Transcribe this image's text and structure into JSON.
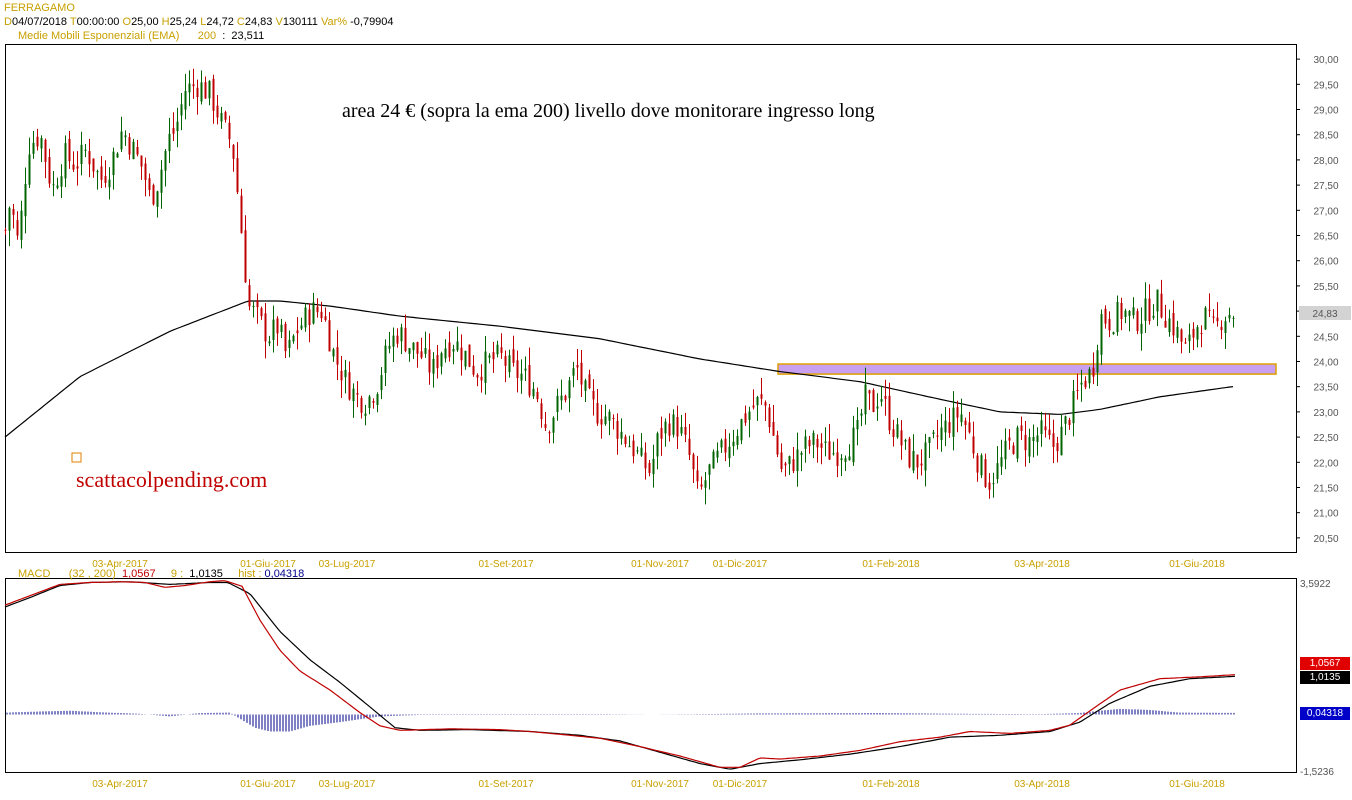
{
  "header": {
    "symbol": "FERRAGAMO",
    "labels": {
      "d": "D",
      "t": "T",
      "o": "O",
      "h": "H",
      "l": "L",
      "c": "C",
      "v": "V",
      "var": "Var%"
    },
    "date": "04/07/2018",
    "time": "00:00:00",
    "open": "25,00",
    "high": "25,24",
    "low": "24,72",
    "close": "24,83",
    "volume": "130111",
    "var_pct": "-0,79904",
    "ema_label": "Medie Mobili Esponenziali (EMA)",
    "ema_period": "200",
    "ema_value": "23,511"
  },
  "colors": {
    "up": "#006400",
    "down": "#c00000",
    "zone": "#c9a0f0",
    "zone_border": "#e0a000",
    "axis_text": "#c8a000",
    "macd_line": "#c00000",
    "signal_line": "#000000",
    "hist": "#00008b"
  },
  "annotation": {
    "note": "area 24 € (sopra la ema 200) livello dove monitorare ingresso long",
    "watermark": "scattacolpending.com"
  },
  "macd_legend": {
    "name": "MACD",
    "params": "(32 , 200)",
    "macd_value": "1,0567",
    "signal_period": "9",
    "signal_sep": ":",
    "signal_value": "1,0135",
    "hist_label": "hist",
    "hist_sep": ":",
    "hist_value": "0,04318"
  },
  "price_last": "24,83",
  "macd_axis": {
    "top": "3,5922",
    "bottom": "-1,5236"
  },
  "macd_badges": {
    "macd": "1,0567",
    "signal": "1,0135",
    "hist": "0,04318"
  },
  "chart_data": {
    "type": "candlestick",
    "x_labels": [
      "03-Apr-2017",
      "01-Giu-2017",
      "03-Lug-2017",
      "01-Set-2017",
      "01-Nov-2017",
      "01-Dic-2017",
      "01-Feb-2018",
      "03-Apr-2018",
      "01-Giu-2018"
    ],
    "y_ticks": [
      "20,50",
      "21,00",
      "21,50",
      "22,00",
      "22,50",
      "23,00",
      "23,50",
      "24,00",
      "24,50",
      "25,00",
      "25,50",
      "26,00",
      "26,50",
      "27,00",
      "27,50",
      "28,00",
      "28,50",
      "29,00",
      "29,50",
      "30,00"
    ],
    "ylim": [
      20.2,
      30.3
    ],
    "price_path": [
      [
        0,
        26.5
      ],
      [
        5,
        26.6
      ],
      [
        10,
        27.2
      ],
      [
        18,
        26.3
      ],
      [
        28,
        28.3
      ],
      [
        40,
        28.5
      ],
      [
        52,
        27.4
      ],
      [
        64,
        28.1
      ],
      [
        75,
        27.9
      ],
      [
        86,
        28.2
      ],
      [
        100,
        27.6
      ],
      [
        110,
        27.9
      ],
      [
        122,
        28.6
      ],
      [
        133,
        28.2
      ],
      [
        143,
        27.8
      ],
      [
        150,
        27.2
      ],
      [
        158,
        27.6
      ],
      [
        168,
        28.4
      ],
      [
        175,
        28.6
      ],
      [
        185,
        29.4
      ],
      [
        198,
        29.5
      ],
      [
        210,
        29.3
      ],
      [
        222,
        28.7
      ],
      [
        232,
        28.3
      ],
      [
        238,
        27.2
      ],
      [
        244,
        26.0
      ],
      [
        248,
        25.1
      ],
      [
        256,
        24.9
      ],
      [
        268,
        24.5
      ],
      [
        278,
        24.7
      ],
      [
        286,
        24.1
      ],
      [
        296,
        24.6
      ],
      [
        310,
        25.0
      ],
      [
        322,
        25.0
      ],
      [
        334,
        24.1
      ],
      [
        346,
        23.6
      ],
      [
        356,
        23.3
      ],
      [
        366,
        23.2
      ],
      [
        376,
        23.5
      ],
      [
        388,
        24.3
      ],
      [
        398,
        24.6
      ],
      [
        410,
        24.3
      ],
      [
        422,
        24.1
      ],
      [
        432,
        23.8
      ],
      [
        442,
        24.3
      ],
      [
        454,
        24.4
      ],
      [
        466,
        24.1
      ],
      [
        476,
        23.8
      ],
      [
        488,
        24.0
      ],
      [
        500,
        24.1
      ],
      [
        512,
        23.8
      ],
      [
        524,
        23.7
      ],
      [
        536,
        23.4
      ],
      [
        546,
        22.7
      ],
      [
        556,
        23.1
      ],
      [
        566,
        23.4
      ],
      [
        576,
        23.9
      ],
      [
        586,
        23.3
      ],
      [
        596,
        23.0
      ],
      [
        608,
        22.9
      ],
      [
        620,
        22.6
      ],
      [
        632,
        22.3
      ],
      [
        642,
        22.0
      ],
      [
        650,
        21.8
      ],
      [
        658,
        22.5
      ],
      [
        668,
        22.8
      ],
      [
        678,
        22.7
      ],
      [
        688,
        22.2
      ],
      [
        698,
        21.3
      ],
      [
        708,
        21.8
      ],
      [
        718,
        22.1
      ],
      [
        728,
        22.4
      ],
      [
        738,
        22.7
      ],
      [
        748,
        23.0
      ],
      [
        758,
        23.2
      ],
      [
        766,
        23.1
      ],
      [
        772,
        22.6
      ],
      [
        782,
        21.8
      ],
      [
        792,
        22.0
      ],
      [
        804,
        22.3
      ],
      [
        816,
        22.4
      ],
      [
        826,
        22.2
      ],
      [
        838,
        22.2
      ],
      [
        850,
        22.4
      ],
      [
        858,
        22.6
      ],
      [
        864,
        23.3
      ],
      [
        872,
        23.1
      ],
      [
        880,
        23.4
      ],
      [
        888,
        22.9
      ],
      [
        898,
        22.5
      ],
      [
        908,
        22.1
      ],
      [
        918,
        22.0
      ],
      [
        928,
        22.2
      ],
      [
        940,
        22.6
      ],
      [
        950,
        22.8
      ],
      [
        960,
        23.0
      ],
      [
        968,
        22.6
      ],
      [
        978,
        22.0
      ],
      [
        988,
        21.6
      ],
      [
        998,
        21.9
      ],
      [
        1008,
        22.3
      ],
      [
        1018,
        22.5
      ],
      [
        1030,
        22.4
      ],
      [
        1040,
        22.6
      ],
      [
        1052,
        22.3
      ],
      [
        1062,
        22.6
      ],
      [
        1072,
        23.1
      ],
      [
        1082,
        23.6
      ],
      [
        1092,
        23.8
      ],
      [
        1100,
        24.9
      ],
      [
        1110,
        24.8
      ],
      [
        1122,
        25.0
      ],
      [
        1134,
        24.8
      ],
      [
        1146,
        25.0
      ],
      [
        1156,
        25.2
      ],
      [
        1166,
        24.9
      ],
      [
        1176,
        24.6
      ],
      [
        1186,
        24.2
      ],
      [
        1196,
        24.7
      ],
      [
        1204,
        24.9
      ],
      [
        1214,
        24.6
      ],
      [
        1222,
        24.9
      ],
      [
        1232,
        25.0
      ],
      [
        1236,
        24.83
      ]
    ],
    "ema_path": [
      [
        5,
        22.5
      ],
      [
        80,
        23.7
      ],
      [
        170,
        24.6
      ],
      [
        248,
        25.2
      ],
      [
        280,
        25.2
      ],
      [
        330,
        25.1
      ],
      [
        400,
        24.9
      ],
      [
        500,
        24.7
      ],
      [
        600,
        24.45
      ],
      [
        700,
        24.05
      ],
      [
        780,
        23.8
      ],
      [
        860,
        23.6
      ],
      [
        940,
        23.25
      ],
      [
        1000,
        23.0
      ],
      [
        1060,
        22.95
      ],
      [
        1100,
        23.05
      ],
      [
        1160,
        23.3
      ],
      [
        1236,
        23.511
      ]
    ],
    "zone": {
      "low": 23.75,
      "high": 23.95,
      "x_start": 778,
      "x_end": 1276
    },
    "macd_ylim": [
      -1.5236,
      3.5922
    ],
    "macd_path": [
      [
        5,
        2.9
      ],
      [
        30,
        3.15
      ],
      [
        60,
        3.45
      ],
      [
        90,
        3.5
      ],
      [
        120,
        3.52
      ],
      [
        145,
        3.5
      ],
      [
        165,
        3.37
      ],
      [
        185,
        3.42
      ],
      [
        210,
        3.52
      ],
      [
        225,
        3.55
      ],
      [
        242,
        3.4
      ],
      [
        260,
        2.5
      ],
      [
        280,
        1.7
      ],
      [
        300,
        1.15
      ],
      [
        330,
        0.65
      ],
      [
        360,
        0.05
      ],
      [
        380,
        -0.3
      ],
      [
        400,
        -0.42
      ],
      [
        450,
        -0.38
      ],
      [
        500,
        -0.4
      ],
      [
        530,
        -0.45
      ],
      [
        570,
        -0.55
      ],
      [
        600,
        -0.63
      ],
      [
        640,
        -0.85
      ],
      [
        680,
        -1.1
      ],
      [
        720,
        -1.4
      ],
      [
        740,
        -1.4
      ],
      [
        760,
        -1.15
      ],
      [
        780,
        -1.18
      ],
      [
        820,
        -1.1
      ],
      [
        860,
        -0.95
      ],
      [
        900,
        -0.72
      ],
      [
        940,
        -0.6
      ],
      [
        970,
        -0.45
      ],
      [
        1010,
        -0.5
      ],
      [
        1050,
        -0.42
      ],
      [
        1070,
        -0.28
      ],
      [
        1090,
        0.1
      ],
      [
        1120,
        0.65
      ],
      [
        1160,
        0.95
      ],
      [
        1200,
        1.0
      ],
      [
        1236,
        1.0567
      ]
    ],
    "signal_path": [
      [
        5,
        2.85
      ],
      [
        30,
        3.1
      ],
      [
        60,
        3.42
      ],
      [
        90,
        3.5
      ],
      [
        130,
        3.52
      ],
      [
        170,
        3.45
      ],
      [
        210,
        3.5
      ],
      [
        228,
        3.5
      ],
      [
        250,
        3.2
      ],
      [
        280,
        2.2
      ],
      [
        310,
        1.45
      ],
      [
        340,
        0.85
      ],
      [
        370,
        0.2
      ],
      [
        395,
        -0.35
      ],
      [
        420,
        -0.42
      ],
      [
        470,
        -0.4
      ],
      [
        530,
        -0.45
      ],
      [
        580,
        -0.55
      ],
      [
        620,
        -0.7
      ],
      [
        660,
        -1.0
      ],
      [
        700,
        -1.3
      ],
      [
        730,
        -1.45
      ],
      [
        760,
        -1.3
      ],
      [
        800,
        -1.2
      ],
      [
        850,
        -1.05
      ],
      [
        900,
        -0.85
      ],
      [
        950,
        -0.6
      ],
      [
        1000,
        -0.55
      ],
      [
        1050,
        -0.45
      ],
      [
        1080,
        -0.2
      ],
      [
        1110,
        0.3
      ],
      [
        1150,
        0.75
      ],
      [
        1190,
        0.95
      ],
      [
        1236,
        1.0135
      ]
    ],
    "hist_path": [
      [
        5,
        0.05
      ],
      [
        40,
        0.08
      ],
      [
        70,
        0.1
      ],
      [
        100,
        0.06
      ],
      [
        140,
        0.02
      ],
      [
        170,
        -0.05
      ],
      [
        200,
        0.04
      ],
      [
        230,
        0.05
      ],
      [
        255,
        -0.35
      ],
      [
        270,
        -0.45
      ],
      [
        290,
        -0.45
      ],
      [
        310,
        -0.3
      ],
      [
        340,
        -0.2
      ],
      [
        380,
        -0.05
      ],
      [
        420,
        -0.01
      ],
      [
        500,
        -0.01
      ],
      [
        600,
        -0.01
      ],
      [
        700,
        0.01
      ],
      [
        760,
        0.03
      ],
      [
        880,
        0.04
      ],
      [
        960,
        0.02
      ],
      [
        1040,
        0.01
      ],
      [
        1080,
        0.04
      ],
      [
        1100,
        0.1
      ],
      [
        1120,
        0.15
      ],
      [
        1150,
        0.12
      ],
      [
        1180,
        0.05
      ],
      [
        1236,
        0.04318
      ]
    ]
  }
}
